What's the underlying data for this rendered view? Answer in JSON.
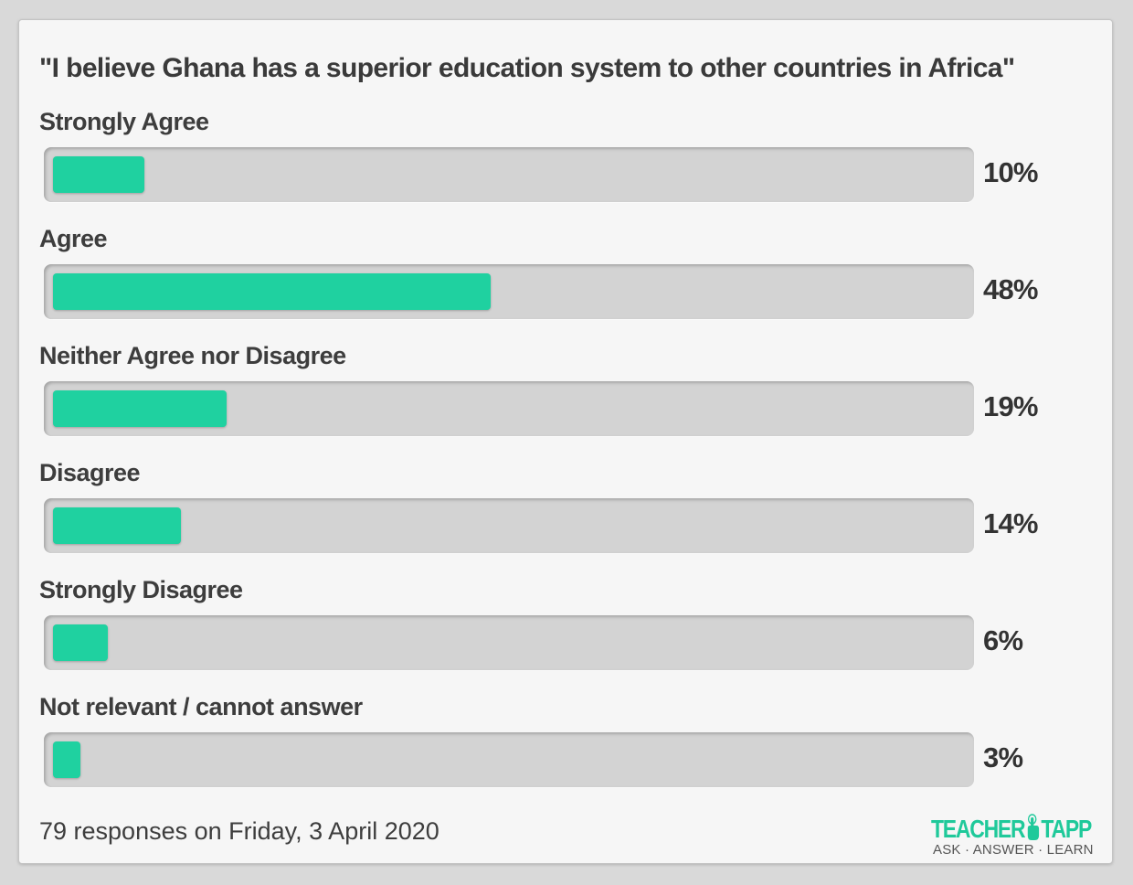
{
  "chart_data": {
    "type": "bar",
    "orientation": "horizontal",
    "title": "\"I believe Ghana has a superior education system to other countries in Africa\"",
    "categories": [
      "Strongly Agree",
      "Agree",
      "Neither Agree nor Disagree",
      "Disagree",
      "Strongly Disagree",
      "Not relevant / cannot answer"
    ],
    "values": [
      10,
      48,
      19,
      14,
      6,
      3
    ],
    "value_labels": [
      "10%",
      "48%",
      "19%",
      "14%",
      "6%",
      "3%"
    ],
    "xlim": [
      0,
      100
    ],
    "bar_color": "#1fd1a0",
    "track_color": "#d3d3d3",
    "grid": false,
    "legend": "none"
  },
  "footer": {
    "responses": "79 responses on Friday, 3 April 2020"
  },
  "logo": {
    "text_left": "TEACHER",
    "text_right": "TAPP",
    "tagline": "ASK · ANSWER · LEARN",
    "icon": "pointing-hand-icon",
    "color": "#1fc99a"
  }
}
